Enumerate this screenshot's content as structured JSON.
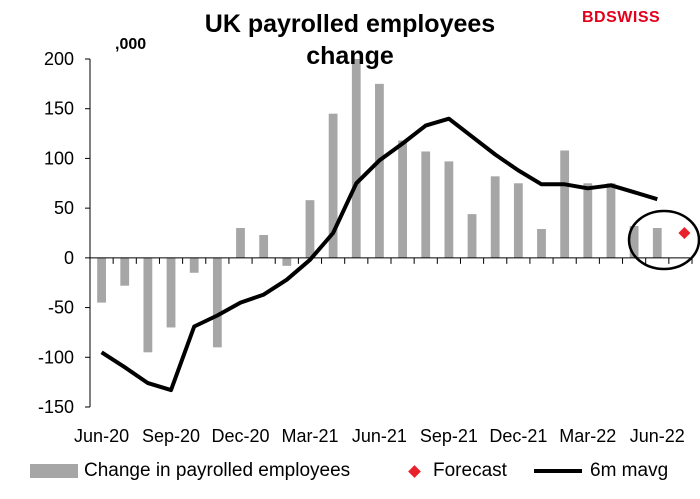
{
  "title": "UK payrolled employees change",
  "unit_label": ",000",
  "logo": {
    "part1": "BD",
    "part2": "SWISS"
  },
  "colors": {
    "bars": "#a6a6a6",
    "line": "#000000",
    "forecast": "#e8212b"
  },
  "chart_data": {
    "type": "bar",
    "title": "UK payrolled employees change",
    "ylim": [
      -150,
      200
    ],
    "yticks": [
      200,
      150,
      100,
      50,
      0,
      -50,
      -100,
      -150
    ],
    "grid": false,
    "x_tick_labels": [
      "Jun-20",
      "Sep-20",
      "Dec-20",
      "Mar-21",
      "Jun-21",
      "Sep-21",
      "Dec-21",
      "Mar-22",
      "Jun-22"
    ],
    "categories": [
      "Jun-20",
      "Jul-20",
      "Aug-20",
      "Sep-20",
      "Oct-20",
      "Nov-20",
      "Dec-20",
      "Jan-21",
      "Feb-21",
      "Mar-21",
      "Apr-21",
      "May-21",
      "Jun-21",
      "Jul-21",
      "Aug-21",
      "Sep-21",
      "Oct-21",
      "Nov-21",
      "Dec-21",
      "Jan-22",
      "Feb-22",
      "Mar-22",
      "Apr-22",
      "May-22",
      "Jun-22",
      "Jul-22"
    ],
    "series": [
      {
        "name": "Change in payrolled employees",
        "type": "bar",
        "values": [
          -45,
          -28,
          -95,
          -70,
          -15,
          -90,
          30,
          23,
          -8,
          58,
          145,
          200,
          175,
          118,
          107,
          97,
          44,
          82,
          75,
          29,
          108,
          75,
          75,
          32,
          30,
          null
        ]
      },
      {
        "name": "Forecast",
        "type": "point",
        "values": [
          null,
          null,
          null,
          null,
          null,
          null,
          null,
          null,
          null,
          null,
          null,
          null,
          null,
          null,
          null,
          null,
          null,
          null,
          null,
          null,
          null,
          null,
          null,
          null,
          null,
          25
        ]
      },
      {
        "name": "6m mavg",
        "type": "line",
        "values": [
          -95,
          -110,
          -126,
          -133,
          -69,
          -58,
          -45,
          -37,
          -22,
          -2,
          25,
          75,
          98,
          115,
          133,
          140,
          122,
          104,
          88,
          74,
          74,
          70,
          73,
          66,
          59,
          null
        ]
      }
    ],
    "legend_position": "bottom",
    "annotation": "circle around Jun-22 bar and forecast"
  }
}
